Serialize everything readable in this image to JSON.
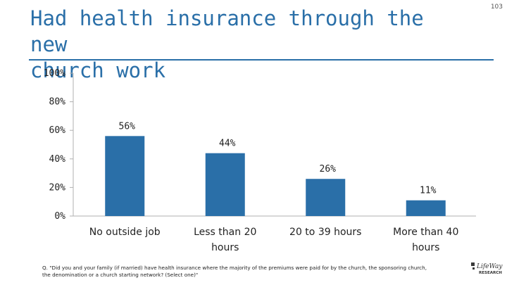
{
  "slide": {
    "title": "Had health insurance through the new\nchurch work",
    "page_number": "103",
    "footnote": "Q. \"Did you and your family (if married) have health insurance where the majority of the premiums were paid for by the church, the sponsoring church, the denomination or a church starting network? (Select one)\"",
    "logo_text": "LifeWay RESEARCH"
  },
  "colors": {
    "accent": "#2a6fa8",
    "bar": "#2a6fa8",
    "axis": "#b0b0b0"
  },
  "chart_data": {
    "type": "bar",
    "categories": [
      "No outside job",
      "Less than 20 hours",
      "20 to 39 hours",
      "More than 40 hours"
    ],
    "category_lines": [
      [
        "No outside job"
      ],
      [
        "Less than 20",
        "hours"
      ],
      [
        "20 to 39 hours"
      ],
      [
        "More than 40",
        "hours"
      ]
    ],
    "values": [
      56,
      44,
      26,
      11
    ],
    "value_labels": [
      "56%",
      "44%",
      "26%",
      "11%"
    ],
    "yticks": [
      0,
      20,
      40,
      60,
      80,
      100
    ],
    "ytick_labels": [
      "0%",
      "20%",
      "40%",
      "60%",
      "80%",
      "100%"
    ],
    "ylim": [
      0,
      100
    ],
    "grid": false,
    "legend": "none"
  }
}
